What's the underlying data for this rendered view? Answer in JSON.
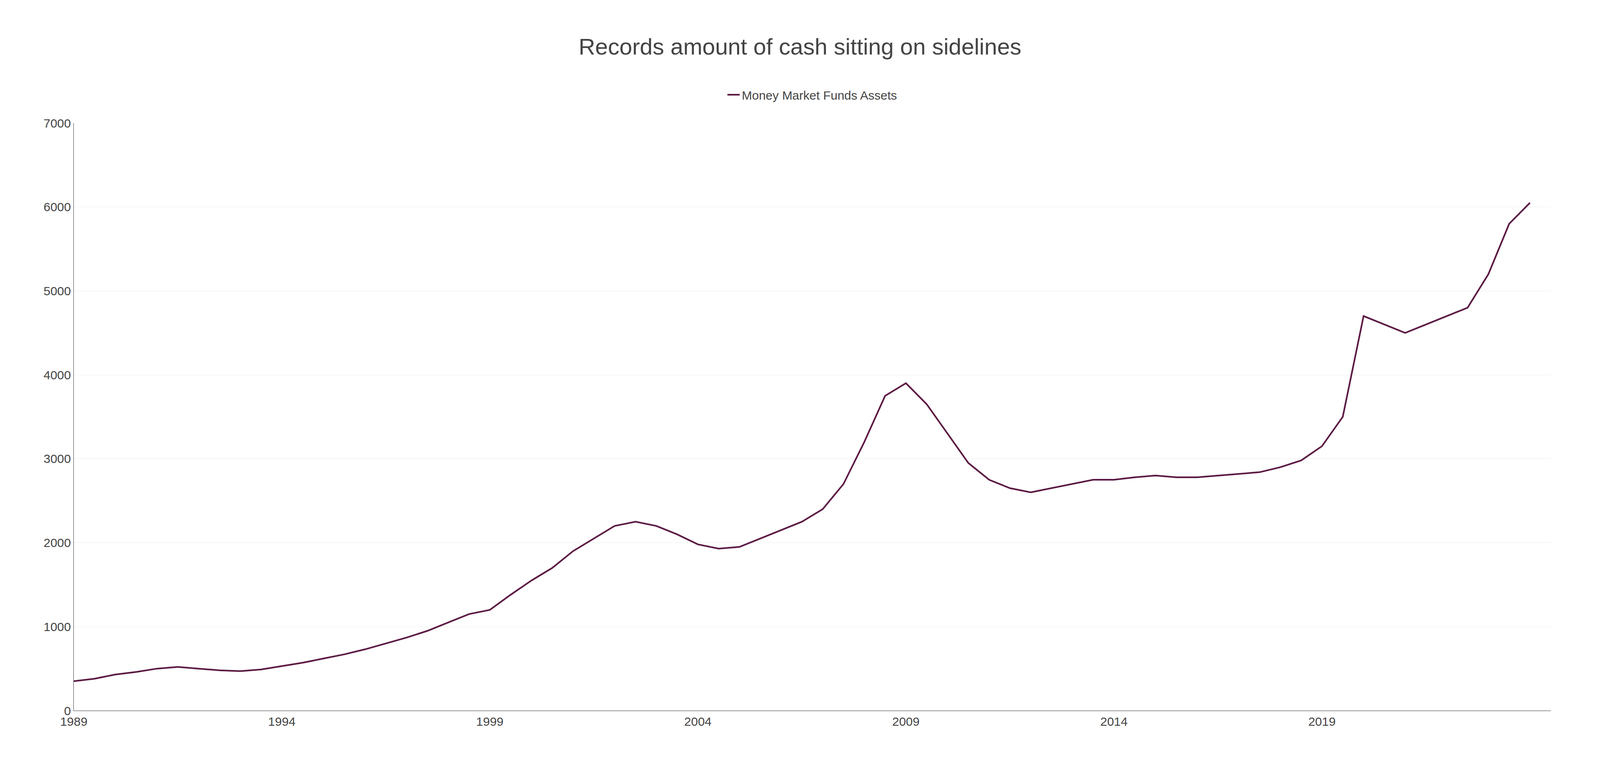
{
  "chart_data": {
    "type": "line",
    "title": "Records amount of cash sitting on sidelines",
    "x": [
      1989.0,
      1989.5,
      1990.0,
      1990.5,
      1991.0,
      1991.5,
      1992.0,
      1992.5,
      1993.0,
      1993.5,
      1994.0,
      1994.5,
      1995.0,
      1995.5,
      1996.0,
      1996.5,
      1997.0,
      1997.5,
      1998.0,
      1998.5,
      1999.0,
      1999.5,
      2000.0,
      2000.5,
      2001.0,
      2001.5,
      2002.0,
      2002.5,
      2003.0,
      2003.5,
      2004.0,
      2004.5,
      2005.0,
      2005.5,
      2006.0,
      2006.5,
      2007.0,
      2007.5,
      2008.0,
      2008.5,
      2009.0,
      2009.5,
      2010.0,
      2010.5,
      2011.0,
      2011.5,
      2012.0,
      2012.5,
      2013.0,
      2013.5,
      2014.0,
      2014.5,
      2015.0,
      2015.5,
      2016.0,
      2016.5,
      2017.0,
      2017.5,
      2018.0,
      2018.5,
      2019.0,
      2019.5,
      2020.0,
      2020.5,
      2021.0,
      2021.5,
      2022.0,
      2022.5,
      2023.0,
      2023.5,
      2024.0
    ],
    "series": [
      {
        "name": "Money Market Funds Assets",
        "color": "#5c1a44",
        "values": [
          350,
          380,
          430,
          460,
          500,
          520,
          500,
          480,
          470,
          490,
          530,
          570,
          620,
          670,
          730,
          800,
          870,
          950,
          1050,
          1150,
          1200,
          1380,
          1550,
          1700,
          1900,
          2050,
          2200,
          2250,
          2200,
          2100,
          1980,
          1930,
          1950,
          2050,
          2150,
          2250,
          2400,
          2700,
          3200,
          3750,
          3900,
          3650,
          3300,
          2950,
          2750,
          2650,
          2600,
          2650,
          2700,
          2750,
          2750,
          2780,
          2800,
          2780,
          2780,
          2800,
          2820,
          2840,
          2900,
          2980,
          3150,
          3500,
          4700,
          4600,
          4500,
          4600,
          4700,
          4800,
          5200,
          5800,
          6050
        ]
      }
    ],
    "xlim": [
      1989,
      2024.5
    ],
    "xticks": [
      1989,
      1994,
      1999,
      2004,
      2009,
      2014,
      2019
    ],
    "ylim": [
      0,
      7000
    ],
    "yticks": [
      0,
      1000,
      2000,
      3000,
      4000,
      5000,
      6000,
      7000
    ],
    "grid": true,
    "legend": "top"
  }
}
